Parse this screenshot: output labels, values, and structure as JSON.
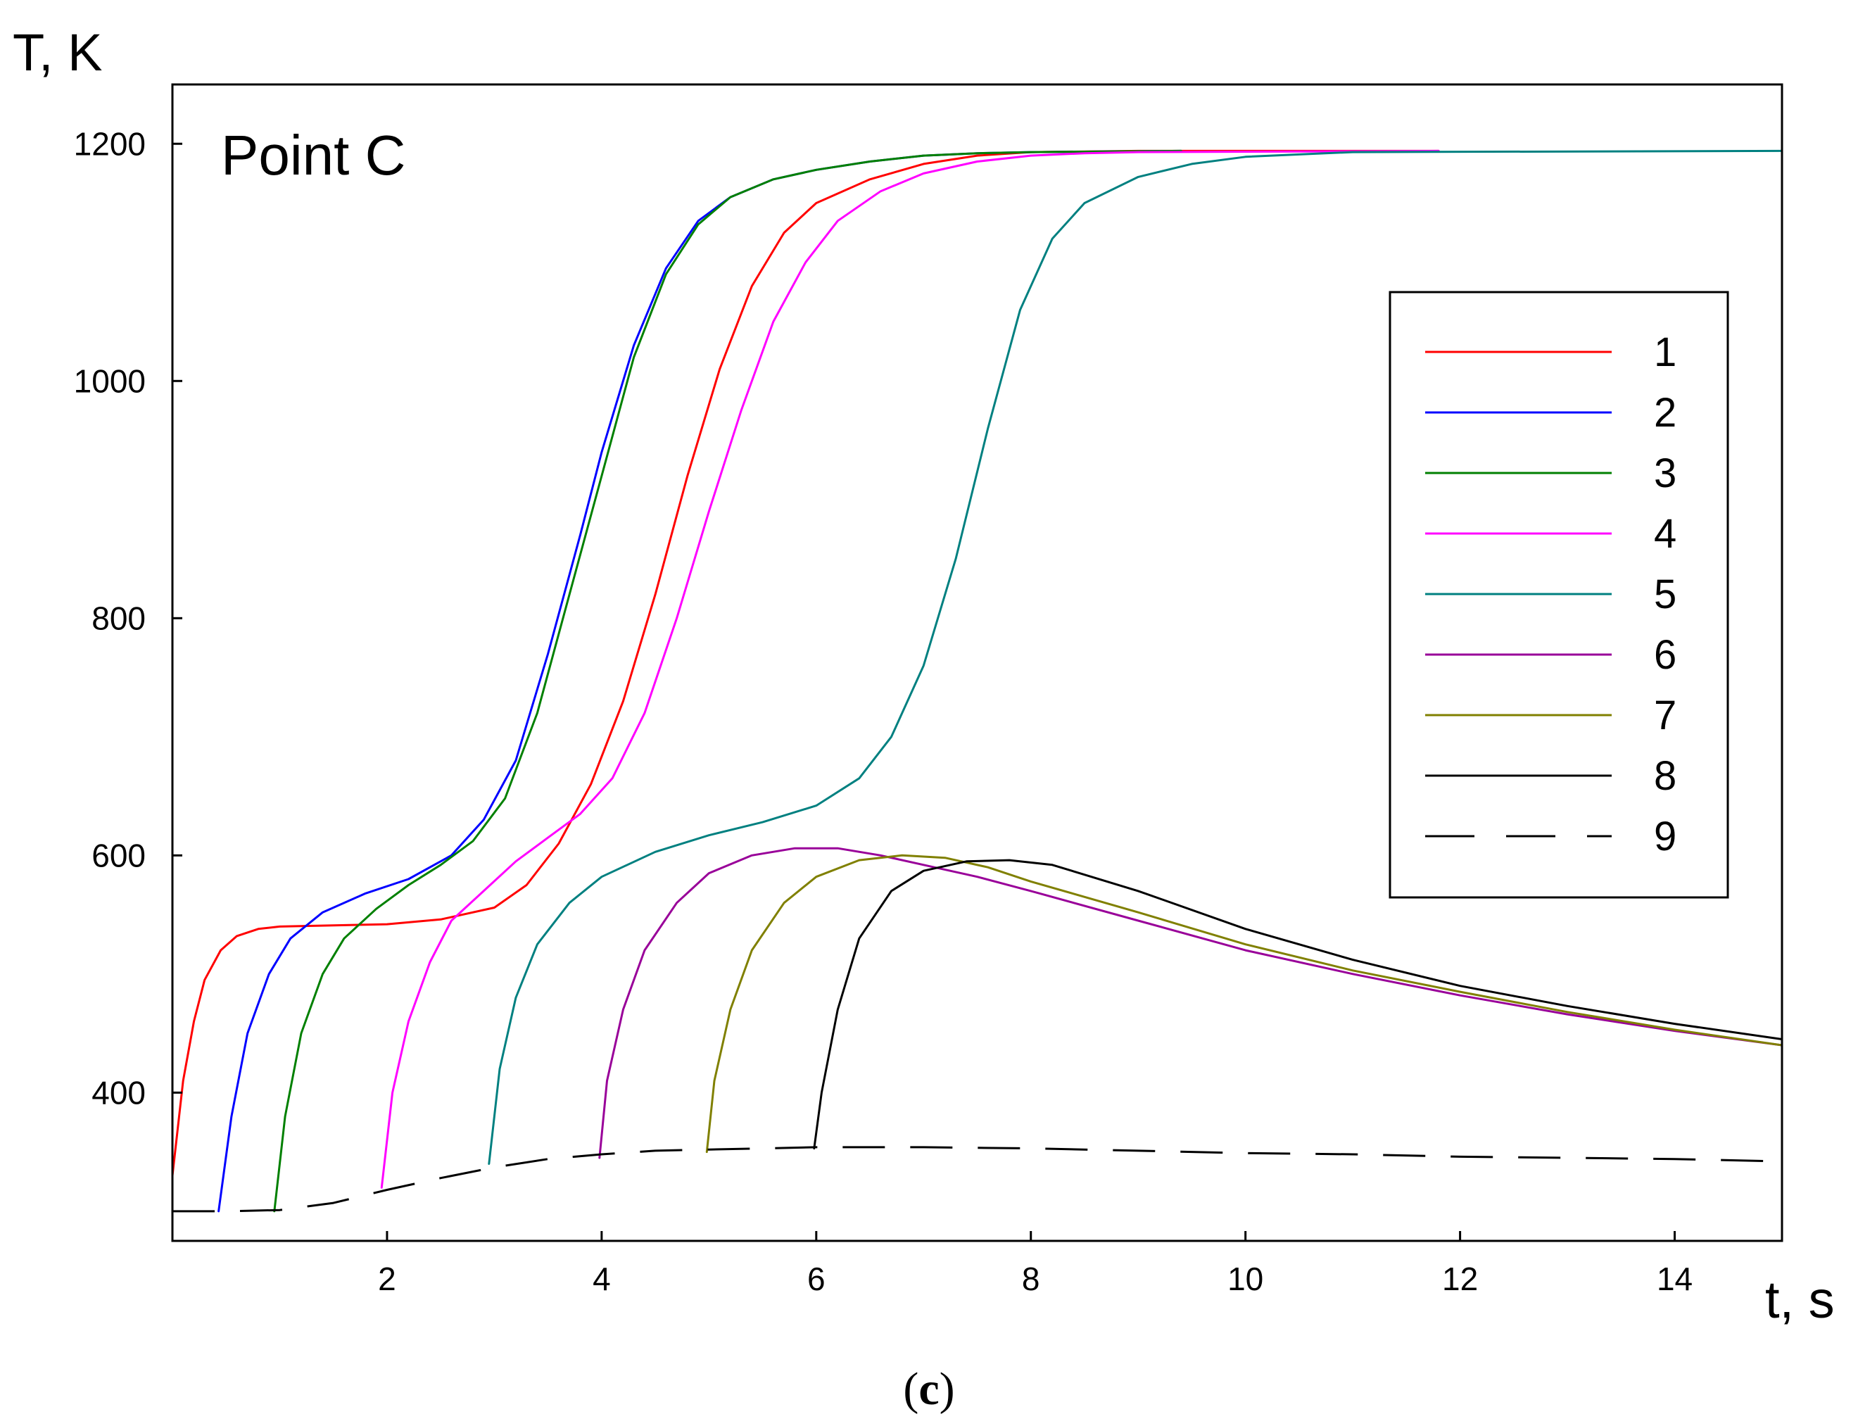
{
  "chart_data": {
    "type": "line",
    "annotation": "Point C",
    "ylabel": "T, K",
    "xlabel": "t, s",
    "caption_open": "(",
    "caption_letter": "c",
    "caption_close": ")",
    "xlim": [
      0,
      15
    ],
    "ylim": [
      275,
      1250
    ],
    "xticks": [
      2,
      4,
      6,
      8,
      10,
      12,
      14
    ],
    "yticks": [
      400,
      600,
      800,
      1000,
      1200
    ],
    "legend_position": "right",
    "series": [
      {
        "name": "1",
        "color": "#ff0000",
        "dash": "solid",
        "points": [
          [
            0,
            330
          ],
          [
            0.1,
            410
          ],
          [
            0.2,
            460
          ],
          [
            0.3,
            495
          ],
          [
            0.45,
            520
          ],
          [
            0.6,
            532
          ],
          [
            0.8,
            538
          ],
          [
            1.0,
            540
          ],
          [
            1.5,
            541
          ],
          [
            2.0,
            542
          ],
          [
            2.5,
            546
          ],
          [
            3.0,
            556
          ],
          [
            3.3,
            575
          ],
          [
            3.6,
            610
          ],
          [
            3.9,
            660
          ],
          [
            4.2,
            730
          ],
          [
            4.5,
            820
          ],
          [
            4.8,
            920
          ],
          [
            5.1,
            1010
          ],
          [
            5.4,
            1080
          ],
          [
            5.7,
            1125
          ],
          [
            6.0,
            1150
          ],
          [
            6.5,
            1170
          ],
          [
            7.0,
            1183
          ],
          [
            7.5,
            1190
          ],
          [
            8.0,
            1193
          ],
          [
            9.0,
            1194
          ],
          [
            11.8,
            1194
          ]
        ]
      },
      {
        "name": "2",
        "color": "#0000ff",
        "dash": "solid",
        "points": [
          [
            0.43,
            300
          ],
          [
            0.55,
            380
          ],
          [
            0.7,
            450
          ],
          [
            0.9,
            500
          ],
          [
            1.1,
            530
          ],
          [
            1.4,
            552
          ],
          [
            1.8,
            568
          ],
          [
            2.2,
            580
          ],
          [
            2.6,
            600
          ],
          [
            2.9,
            630
          ],
          [
            3.2,
            680
          ],
          [
            3.5,
            770
          ],
          [
            3.8,
            870
          ],
          [
            4.0,
            940
          ],
          [
            4.3,
            1030
          ],
          [
            4.6,
            1095
          ],
          [
            4.9,
            1135
          ],
          [
            5.2,
            1155
          ],
          [
            5.6,
            1170
          ],
          [
            6.0,
            1178
          ],
          [
            6.5,
            1185
          ],
          [
            7.0,
            1190
          ],
          [
            7.5,
            1192
          ],
          [
            8.0,
            1193
          ],
          [
            9.4,
            1194
          ]
        ]
      },
      {
        "name": "3",
        "color": "#008000",
        "dash": "solid",
        "points": [
          [
            0.95,
            300
          ],
          [
            1.05,
            380
          ],
          [
            1.2,
            450
          ],
          [
            1.4,
            500
          ],
          [
            1.6,
            530
          ],
          [
            1.9,
            555
          ],
          [
            2.2,
            575
          ],
          [
            2.5,
            592
          ],
          [
            2.8,
            612
          ],
          [
            3.1,
            648
          ],
          [
            3.4,
            720
          ],
          [
            3.7,
            820
          ],
          [
            4.0,
            920
          ],
          [
            4.3,
            1020
          ],
          [
            4.6,
            1090
          ],
          [
            4.9,
            1132
          ],
          [
            5.2,
            1155
          ],
          [
            5.6,
            1170
          ],
          [
            6.0,
            1178
          ],
          [
            6.5,
            1185
          ],
          [
            7.0,
            1190
          ],
          [
            7.5,
            1192
          ],
          [
            8.0,
            1193
          ],
          [
            9.4,
            1194
          ]
        ]
      },
      {
        "name": "4",
        "color": "#ff00ff",
        "dash": "solid",
        "points": [
          [
            1.95,
            320
          ],
          [
            2.05,
            400
          ],
          [
            2.2,
            460
          ],
          [
            2.4,
            510
          ],
          [
            2.6,
            545
          ],
          [
            2.9,
            570
          ],
          [
            3.2,
            595
          ],
          [
            3.5,
            615
          ],
          [
            3.8,
            635
          ],
          [
            4.1,
            665
          ],
          [
            4.4,
            720
          ],
          [
            4.7,
            800
          ],
          [
            5.0,
            890
          ],
          [
            5.3,
            975
          ],
          [
            5.6,
            1050
          ],
          [
            5.9,
            1100
          ],
          [
            6.2,
            1135
          ],
          [
            6.6,
            1160
          ],
          [
            7.0,
            1175
          ],
          [
            7.5,
            1185
          ],
          [
            8.0,
            1190
          ],
          [
            8.5,
            1192
          ],
          [
            9.0,
            1193
          ],
          [
            11.8,
            1194
          ]
        ]
      },
      {
        "name": "5",
        "color": "#008080",
        "dash": "solid",
        "points": [
          [
            2.95,
            340
          ],
          [
            3.05,
            420
          ],
          [
            3.2,
            480
          ],
          [
            3.4,
            525
          ],
          [
            3.7,
            560
          ],
          [
            4.0,
            582
          ],
          [
            4.5,
            603
          ],
          [
            5.0,
            617
          ],
          [
            5.5,
            628
          ],
          [
            6.0,
            642
          ],
          [
            6.4,
            665
          ],
          [
            6.7,
            700
          ],
          [
            7.0,
            760
          ],
          [
            7.3,
            850
          ],
          [
            7.6,
            960
          ],
          [
            7.9,
            1060
          ],
          [
            8.2,
            1120
          ],
          [
            8.5,
            1150
          ],
          [
            9.0,
            1172
          ],
          [
            9.5,
            1183
          ],
          [
            10.0,
            1189
          ],
          [
            11.0,
            1193
          ],
          [
            15.0,
            1194
          ]
        ]
      },
      {
        "name": "6",
        "color": "#990099",
        "dash": "solid",
        "points": [
          [
            3.98,
            345
          ],
          [
            4.05,
            410
          ],
          [
            4.2,
            470
          ],
          [
            4.4,
            520
          ],
          [
            4.7,
            560
          ],
          [
            5.0,
            585
          ],
          [
            5.4,
            600
          ],
          [
            5.8,
            606
          ],
          [
            6.2,
            606
          ],
          [
            6.6,
            600
          ],
          [
            7.0,
            592
          ],
          [
            7.5,
            582
          ],
          [
            8.0,
            570
          ],
          [
            9.0,
            545
          ],
          [
            10.0,
            520
          ],
          [
            11.0,
            500
          ],
          [
            12.0,
            482
          ],
          [
            13.0,
            466
          ],
          [
            14.0,
            452
          ],
          [
            15.0,
            440
          ]
        ]
      },
      {
        "name": "7",
        "color": "#808000",
        "dash": "solid",
        "points": [
          [
            4.98,
            350
          ],
          [
            5.05,
            410
          ],
          [
            5.2,
            470
          ],
          [
            5.4,
            520
          ],
          [
            5.7,
            560
          ],
          [
            6.0,
            582
          ],
          [
            6.4,
            596
          ],
          [
            6.8,
            600
          ],
          [
            7.2,
            598
          ],
          [
            7.6,
            590
          ],
          [
            8.0,
            578
          ],
          [
            9.0,
            552
          ],
          [
            10.0,
            525
          ],
          [
            11.0,
            503
          ],
          [
            12.0,
            485
          ],
          [
            13.0,
            468
          ],
          [
            14.0,
            453
          ],
          [
            15.0,
            440
          ]
        ]
      },
      {
        "name": "8",
        "color": "#000000",
        "dash": "solid",
        "points": [
          [
            5.98,
            353
          ],
          [
            6.05,
            400
          ],
          [
            6.2,
            470
          ],
          [
            6.4,
            530
          ],
          [
            6.7,
            570
          ],
          [
            7.0,
            587
          ],
          [
            7.4,
            595
          ],
          [
            7.8,
            596
          ],
          [
            8.2,
            592
          ],
          [
            9.0,
            570
          ],
          [
            10.0,
            538
          ],
          [
            11.0,
            512
          ],
          [
            12.0,
            490
          ],
          [
            13.0,
            473
          ],
          [
            14.0,
            458
          ],
          [
            15.0,
            445
          ]
        ]
      },
      {
        "name": "9",
        "color": "#000000",
        "dash": "dashed",
        "points": [
          [
            0,
            300
          ],
          [
            0.5,
            300
          ],
          [
            1.0,
            301
          ],
          [
            1.5,
            307
          ],
          [
            2.0,
            318
          ],
          [
            2.5,
            328
          ],
          [
            3.0,
            337
          ],
          [
            3.5,
            344
          ],
          [
            4.0,
            348
          ],
          [
            4.5,
            351
          ],
          [
            5.0,
            352
          ],
          [
            5.5,
            353
          ],
          [
            6.0,
            354
          ],
          [
            7.0,
            354
          ],
          [
            8.0,
            353
          ],
          [
            9.0,
            351
          ],
          [
            10.0,
            349
          ],
          [
            11.0,
            348
          ],
          [
            12.0,
            346
          ],
          [
            13.0,
            345
          ],
          [
            14.0,
            344
          ],
          [
            15.0,
            342
          ]
        ]
      }
    ]
  }
}
